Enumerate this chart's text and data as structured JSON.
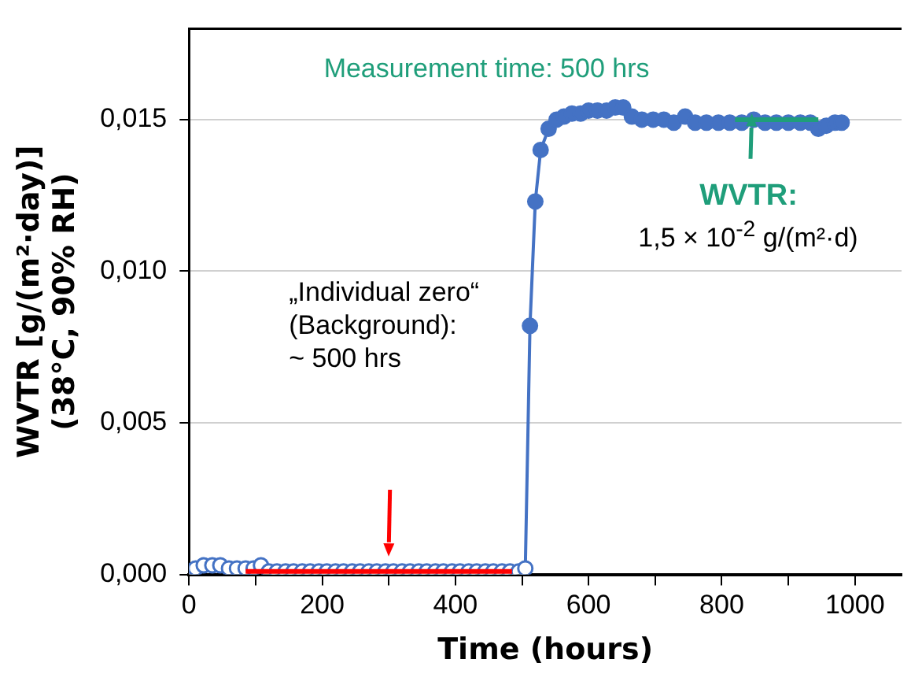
{
  "chart_data": {
    "type": "line",
    "xlabel": "Time (hours)",
    "ylabel": "WVTR [g/(m²·day)]\n(38°C, 90% RH)",
    "xlim": [
      0,
      1070
    ],
    "xticks": [
      0,
      {
        "value": 100,
        "label": null
      },
      200,
      {
        "value": 300,
        "label": null
      },
      400,
      {
        "value": 500,
        "label": null
      },
      600,
      {
        "value": 700,
        "label": null
      },
      800,
      {
        "value": 900,
        "label": null
      },
      1000
    ],
    "ylim": [
      0,
      0.018
    ],
    "yticks": [
      {
        "value": 0,
        "label": "0,000"
      },
      {
        "value": 0.005,
        "label": "0,005"
      },
      {
        "value": 0.01,
        "label": "0,010"
      },
      {
        "value": 0.015,
        "label": "0,015"
      }
    ],
    "grid": "y",
    "legend": false,
    "marker": "circle",
    "series": [
      {
        "color": "#4472c4",
        "x": [
          0,
          10,
          22,
          35,
          47,
          60,
          72,
          85,
          97,
          108,
          120,
          132,
          145,
          157,
          170,
          182,
          195,
          207,
          220,
          232,
          245,
          257,
          270,
          282,
          295,
          307,
          320,
          332,
          345,
          357,
          370,
          382,
          395,
          407,
          420,
          432,
          445,
          457,
          470,
          482,
          495,
          505,
          512,
          520,
          528,
          540,
          552,
          563,
          575,
          588,
          600,
          613,
          627,
          640,
          652,
          665,
          680,
          697,
          713,
          728,
          745,
          760,
          777,
          795,
          812,
          830,
          848,
          865,
          882,
          900,
          918,
          933,
          945,
          957,
          970,
          980
        ],
        "values": [
          0.0001,
          0.0002,
          0.0003,
          0.0003,
          0.0003,
          0.0002,
          0.0002,
          0.0002,
          0.0002,
          0.0003,
          0.0001,
          0.0001,
          0.0001,
          0.0001,
          0.0001,
          0.0001,
          0.0001,
          0.0001,
          0.0001,
          0.0001,
          0.0001,
          0.0001,
          0.0001,
          0.0001,
          0.0001,
          0.0001,
          0.0001,
          0.0001,
          0.0001,
          0.0001,
          0.0001,
          0.0001,
          0.0001,
          0.0001,
          0.0001,
          0.0001,
          0.0001,
          0.0001,
          0.0001,
          0.0001,
          0.0001,
          0.0002,
          0.0082,
          0.0123,
          0.014,
          0.0147,
          0.015,
          0.0151,
          0.0152,
          0.0152,
          0.0153,
          0.0153,
          0.0153,
          0.0154,
          0.0154,
          0.0151,
          0.015,
          0.015,
          0.015,
          0.0149,
          0.0151,
          0.0149,
          0.0149,
          0.0149,
          0.0149,
          0.0149,
          0.015,
          0.0149,
          0.0149,
          0.0149,
          0.0149,
          0.0149,
          0.0147,
          0.0148,
          0.0149,
          0.0149
        ],
        "colors": [
          "#ffffff",
          "#ffffff",
          "#ffffff",
          "#ffffff",
          "#ffffff",
          "#ffffff",
          "#ffffff",
          "#ffffff",
          "#ffffff",
          "#ffffff",
          "#ffffff",
          "#ffffff",
          "#ffffff",
          "#ffffff",
          "#ffffff",
          "#ffffff",
          "#ffffff",
          "#ffffff",
          "#ffffff",
          "#ffffff",
          "#ffffff",
          "#ffffff",
          "#ffffff",
          "#ffffff",
          "#ffffff",
          "#ffffff",
          "#ffffff",
          "#ffffff",
          "#ffffff",
          "#ffffff",
          "#ffffff",
          "#ffffff",
          "#ffffff",
          "#ffffff",
          "#ffffff",
          "#ffffff",
          "#ffffff",
          "#ffffff",
          "#ffffff",
          "#ffffff",
          "#ffffff",
          "#ffffff",
          "#4472c4",
          "#4472c4",
          "#4472c4",
          "#4472c4",
          "#4472c4",
          "#4472c4",
          "#4472c4",
          "#4472c4",
          "#4472c4",
          "#4472c4",
          "#4472c4",
          "#4472c4",
          "#4472c4",
          "#4472c4",
          "#4472c4",
          "#4472c4",
          "#4472c4",
          "#4472c4",
          "#4472c4",
          "#4472c4",
          "#4472c4",
          "#4472c4",
          "#4472c4",
          "#4472c4",
          "#4472c4",
          "#4472c4",
          "#4472c4",
          "#4472c4",
          "#4472c4",
          "#4472c4",
          "#4472c4",
          "#4472c4",
          "#4472c4",
          "#4472c4"
        ]
      },
      {
        "type": "line",
        "marker": "none",
        "color": "#ff0000",
        "x": [
          85,
          485
        ],
        "values": [
          0.0001,
          0.0001
        ]
      },
      {
        "type": "line",
        "marker": "none",
        "color": "#1f9e7a",
        "x": [
          820,
          945
        ],
        "values": [
          0.015,
          0.015
        ]
      }
    ],
    "annotations": [
      "Measurement time: 500 hrs",
      "„Individual zero“\n(Background):\n~ 500 hrs",
      "WVTR:",
      "1,5 × 10$^{-2}$ g/(m²·d)"
    ]
  }
}
